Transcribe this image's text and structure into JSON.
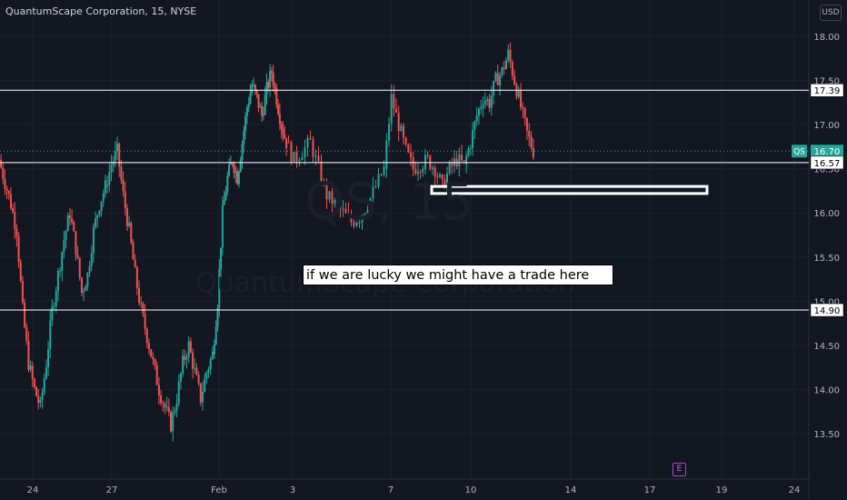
{
  "header": {
    "title": "QuantumScape Corporation, 15, NYSE",
    "currency": "USD"
  },
  "watermark": {
    "symbol": "QS, 15",
    "name": "QuantumScape Corporation"
  },
  "annotation": {
    "note": "if we are lucky we might have a trade here"
  },
  "earnings_marker": "E",
  "colors": {
    "background": "#131722",
    "up": "#26a69a",
    "down": "#ef5350",
    "line": "#ffffff",
    "qs_tag": "#26a69a"
  },
  "chart_data": {
    "type": "candlestick",
    "symbol": "QS",
    "interval": "15",
    "ylim": [
      13.15,
      18.3
    ],
    "y_ticks": [
      "18.00",
      "17.50",
      "17.00",
      "16.50",
      "16.00",
      "15.50",
      "15.00",
      "14.50",
      "14.00",
      "13.50"
    ],
    "x_ticks": [
      "24",
      "27",
      "Feb",
      "3",
      "7",
      "10",
      "14",
      "17",
      "19",
      "24"
    ],
    "horizontal_lines": [
      17.39,
      16.57,
      14.9
    ],
    "price_labels": [
      {
        "value": "17.39",
        "price": 17.39
      },
      {
        "value": "16.70",
        "price": 16.7,
        "tag": "QS"
      },
      {
        "value": "16.57",
        "price": 16.57
      },
      {
        "value": "14.90",
        "price": 14.9
      }
    ],
    "last_price": 16.7,
    "zone": {
      "top": 16.3,
      "bottom": 16.22,
      "from_session": 7.25,
      "to_session": 10.75
    },
    "sessions": [
      {
        "label": "24",
        "prices": [
          16.6,
          16.35,
          16.1,
          15.8,
          14.9,
          14.3,
          14.0,
          13.8,
          14.3,
          14.9,
          15.3,
          15.7,
          16.0,
          15.6,
          15.1,
          15.3,
          15.8,
          16.1,
          16.3
        ]
      },
      {
        "label": "27",
        "prices": [
          16.3,
          16.55,
          16.7,
          16.2,
          15.8,
          15.3,
          14.9,
          14.6,
          14.3,
          14.0,
          13.8,
          13.6,
          13.9,
          14.3,
          14.5,
          14.2,
          13.9,
          14.2,
          14.4
        ]
      },
      {
        "label": "Feb",
        "prices": [
          14.4,
          15.0,
          16.0,
          16.4,
          16.6,
          16.4,
          16.8,
          17.2,
          17.45,
          17.3,
          17.1,
          17.4,
          17.6,
          17.3,
          17.0,
          16.8
        ]
      },
      {
        "label": "3",
        "prices": [
          16.8,
          16.6,
          16.7,
          16.8,
          16.5,
          16.2,
          16.1,
          16.0,
          15.9,
          15.95,
          16.1,
          16.3,
          16.5
        ]
      },
      {
        "label": "7",
        "prices": [
          16.5,
          17.3,
          17.0,
          16.7,
          16.5,
          16.55,
          16.6,
          16.5,
          16.3,
          16.5,
          16.6,
          16.55
        ]
      },
      {
        "label": "10",
        "prices": [
          16.55,
          16.8,
          17.1,
          17.3,
          17.25,
          17.5,
          17.6,
          17.8,
          17.5,
          17.2,
          16.9,
          16.7
        ]
      }
    ]
  }
}
